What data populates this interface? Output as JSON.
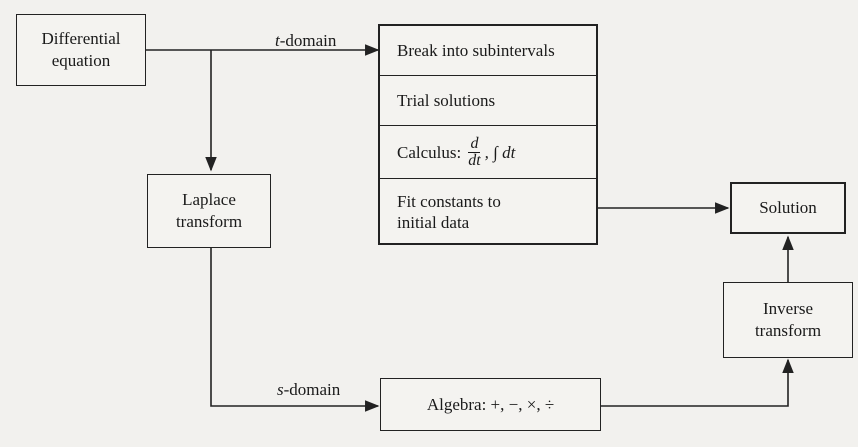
{
  "nodes": {
    "differential_equation": "Differential\nequation",
    "laplace_transform": "Laplace\ntransform",
    "break_subintervals": "Break into subintervals",
    "trial_solutions": "Trial solutions",
    "calculus_prefix": "Calculus:",
    "calculus_num": "d",
    "calculus_den": "dt",
    "calculus_suffix": ", ∫ dt",
    "fit_constants": "Fit constants to\ninitial data",
    "solution": "Solution",
    "inverse_transform": "Inverse\ntransform",
    "algebra": "Algebra: +, −, ×, ÷"
  },
  "edge_labels": {
    "t_domain_letter": "t",
    "t_domain_rest": "-domain",
    "s_domain_letter": "s",
    "s_domain_rest": "-domain"
  },
  "colors": {
    "ink": "#222222",
    "paper": "#f2f1ee"
  }
}
